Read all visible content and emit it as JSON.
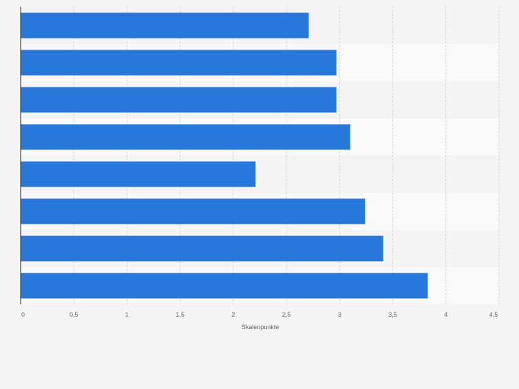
{
  "chart_data": {
    "type": "bar",
    "orientation": "horizontal",
    "categories": [
      "",
      "",
      "",
      "",
      "",
      "",
      "",
      ""
    ],
    "values": [
      2.71,
      2.97,
      2.97,
      3.1,
      2.21,
      3.24,
      3.41,
      3.83
    ],
    "xlabel": "Skalenpunkte",
    "ylabel": "",
    "xlim": [
      0,
      4.5
    ],
    "x_ticks": [
      0,
      0.5,
      1,
      1.5,
      2,
      2.5,
      3,
      3.5,
      4,
      4.5
    ],
    "x_tick_labels": [
      "0",
      "0,5",
      "1",
      "1,5",
      "2",
      "2,5",
      "3",
      "3,5",
      "4",
      "4,5"
    ],
    "grid": true,
    "legend": "none",
    "bar_color": "#2878dc",
    "colors": {
      "background": "#f4f4f4",
      "band_light": "#f9f9f9",
      "gridline": "#d6d6d6",
      "axis": "#444444",
      "tick_text": "#666666"
    }
  }
}
